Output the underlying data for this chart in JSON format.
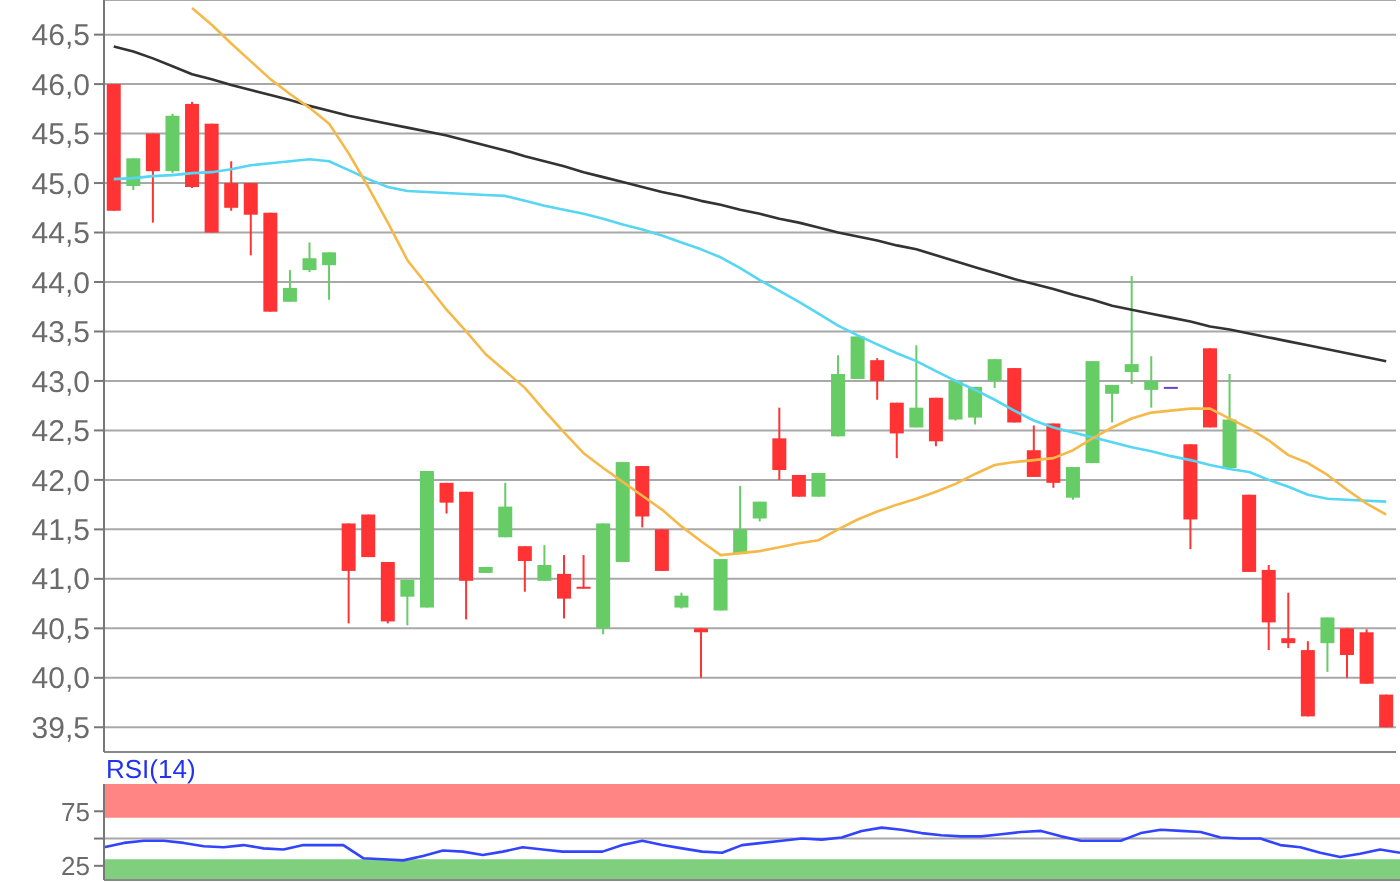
{
  "chart_data": [
    {
      "type": "candlestick",
      "categories": [
        null,
        null,
        null,
        null,
        null,
        null,
        null,
        null,
        null,
        null,
        null,
        null,
        null,
        null,
        null,
        null,
        null,
        null,
        null,
        null,
        null,
        null,
        null,
        null,
        null,
        null,
        null,
        null,
        null,
        null,
        null,
        null,
        null,
        null,
        null,
        null,
        null,
        null,
        null,
        null,
        null,
        null,
        null,
        null,
        null,
        null,
        null,
        null,
        null,
        null,
        null,
        null,
        null,
        null,
        null,
        null,
        null,
        null,
        null,
        null,
        null,
        null,
        null,
        null,
        null,
        null
      ],
      "ohlc": [
        [
          46.0,
          46.0,
          44.72,
          44.72
        ],
        [
          44.97,
          45.25,
          44.93,
          45.25
        ],
        [
          45.5,
          45.5,
          44.6,
          45.12
        ],
        [
          45.12,
          45.7,
          45.1,
          45.68
        ],
        [
          45.8,
          45.82,
          44.95,
          44.96
        ],
        [
          45.6,
          45.6,
          44.5,
          44.5
        ],
        [
          45.0,
          45.22,
          44.72,
          44.75
        ],
        [
          45.0,
          45.0,
          44.27,
          44.68
        ],
        [
          44.7,
          44.7,
          43.7,
          43.7
        ],
        [
          43.8,
          44.12,
          43.8,
          43.94
        ],
        [
          44.12,
          44.4,
          44.1,
          44.24
        ],
        [
          44.17,
          44.3,
          43.82,
          44.3
        ],
        [
          41.56,
          41.56,
          40.55,
          41.08
        ],
        [
          41.65,
          41.65,
          41.22,
          41.22
        ],
        [
          41.17,
          41.17,
          40.55,
          40.57
        ],
        [
          40.82,
          40.99,
          40.53,
          40.99
        ],
        [
          40.71,
          42.09,
          40.71,
          42.09
        ],
        [
          41.97,
          41.97,
          41.66,
          41.77
        ],
        [
          41.88,
          41.88,
          40.59,
          40.98
        ],
        [
          41.06,
          41.12,
          41.06,
          41.12
        ],
        [
          41.42,
          41.97,
          41.42,
          41.73
        ],
        [
          41.33,
          41.33,
          40.87,
          41.18
        ],
        [
          40.98,
          41.34,
          40.98,
          41.14
        ],
        [
          41.05,
          41.24,
          40.6,
          40.8
        ],
        [
          40.92,
          41.24,
          40.9,
          40.91
        ],
        [
          40.5,
          41.56,
          40.44,
          41.56
        ],
        [
          41.17,
          42.18,
          41.17,
          42.18
        ],
        [
          42.14,
          42.14,
          41.52,
          41.63
        ],
        [
          41.5,
          41.5,
          41.08,
          41.08
        ],
        [
          40.71,
          40.86,
          40.7,
          40.83
        ],
        [
          40.5,
          40.5,
          40.0,
          40.46
        ],
        [
          40.68,
          41.2,
          40.68,
          41.2
        ],
        [
          41.25,
          41.94,
          41.25,
          41.5
        ],
        [
          41.61,
          41.78,
          41.58,
          41.78
        ],
        [
          42.42,
          42.73,
          42.0,
          42.1
        ],
        [
          42.05,
          42.05,
          41.83,
          41.83
        ],
        [
          41.83,
          42.07,
          41.83,
          42.07
        ],
        [
          42.44,
          43.26,
          42.44,
          43.07
        ],
        [
          43.02,
          43.45,
          43.02,
          43.45
        ],
        [
          43.21,
          43.23,
          42.81,
          43.0
        ],
        [
          42.78,
          42.78,
          42.22,
          42.47
        ],
        [
          42.53,
          43.36,
          42.53,
          42.73
        ],
        [
          42.83,
          42.83,
          42.34,
          42.39
        ],
        [
          42.61,
          43.0,
          42.6,
          43.0
        ],
        [
          42.63,
          42.94,
          42.56,
          42.94
        ],
        [
          43.0,
          43.22,
          42.93,
          43.22
        ],
        [
          43.13,
          43.13,
          42.58,
          42.58
        ],
        [
          42.3,
          42.55,
          42.03,
          42.03
        ],
        [
          42.57,
          42.57,
          41.92,
          41.97
        ],
        [
          41.82,
          42.13,
          41.8,
          42.13
        ],
        [
          42.17,
          43.2,
          42.17,
          43.2
        ],
        [
          42.87,
          42.96,
          42.58,
          42.96
        ],
        [
          43.09,
          44.06,
          42.97,
          43.17
        ],
        [
          42.91,
          43.25,
          42.73,
          43.0
        ],
        [
          42.94,
          42.94,
          42.94,
          42.94
        ],
        [
          42.36,
          42.36,
          41.3,
          41.6
        ],
        [
          43.33,
          43.33,
          42.53,
          42.53
        ],
        [
          42.12,
          43.07,
          42.12,
          42.61
        ],
        [
          41.85,
          41.85,
          41.07,
          41.07
        ],
        [
          41.09,
          41.14,
          40.28,
          40.56
        ],
        [
          40.4,
          40.86,
          40.3,
          40.35
        ],
        [
          40.28,
          40.37,
          39.61,
          39.61
        ],
        [
          40.35,
          40.61,
          40.06,
          40.61
        ],
        [
          40.5,
          40.5,
          40.0,
          40.23
        ],
        [
          40.46,
          40.49,
          39.94,
          39.94
        ],
        [
          39.83,
          39.83,
          39.5,
          39.5
        ]
      ],
      "colors": [
        "#ff3333",
        "#66cc66",
        "#ff3333",
        "#66cc66",
        "#ff3333",
        "#ff3333",
        "#ff3333",
        "#ff3333",
        "#ff3333",
        "#66cc66",
        "#66cc66",
        "#66cc66",
        "#ff3333",
        "#ff3333",
        "#ff3333",
        "#66cc66",
        "#66cc66",
        "#ff3333",
        "#ff3333",
        "#66cc66",
        "#66cc66",
        "#ff3333",
        "#66cc66",
        "#ff3333",
        "#ff3333",
        "#66cc66",
        "#66cc66",
        "#ff3333",
        "#ff3333",
        "#66cc66",
        "#ff3333",
        "#66cc66",
        "#66cc66",
        "#66cc66",
        "#ff3333",
        "#ff3333",
        "#66cc66",
        "#66cc66",
        "#66cc66",
        "#ff3333",
        "#ff3333",
        "#66cc66",
        "#ff3333",
        "#66cc66",
        "#66cc66",
        "#66cc66",
        "#ff3333",
        "#ff3333",
        "#ff3333",
        "#66cc66",
        "#66cc66",
        "#66cc66",
        "#66cc66",
        "#66cc66",
        "#6644cc",
        "#ff3333",
        "#ff3333",
        "#66cc66",
        "#ff3333",
        "#ff3333",
        "#ff3333",
        "#ff3333",
        "#66cc66",
        "#ff3333",
        "#ff3333",
        "#ff3333"
      ],
      "series": [
        {
          "type": "line",
          "color": "#333333",
          "values": [
            46.38,
            46.33,
            46.26,
            46.18,
            46.1,
            46.05,
            45.99,
            45.94,
            45.89,
            45.84,
            45.78,
            45.73,
            45.68,
            45.64,
            45.6,
            45.56,
            45.52,
            45.48,
            45.43,
            45.38,
            45.33,
            45.27,
            45.22,
            45.17,
            45.11,
            45.06,
            45.01,
            44.96,
            44.91,
            44.87,
            44.82,
            44.78,
            44.73,
            44.69,
            44.64,
            44.6,
            44.55,
            44.5,
            44.46,
            44.42,
            44.37,
            44.33,
            44.27,
            44.21,
            44.15,
            44.09,
            44.03,
            43.98,
            43.93,
            43.87,
            43.82,
            43.76,
            43.72,
            43.68,
            43.64,
            43.6,
            43.55,
            43.52,
            43.48,
            43.44,
            43.4,
            43.36,
            43.32,
            43.28,
            43.24,
            43.2
          ]
        },
        {
          "type": "line",
          "color": "#55d6f2",
          "values": [
            45.04,
            45.05,
            45.07,
            45.08,
            45.1,
            45.11,
            45.14,
            45.18,
            45.2,
            45.22,
            45.24,
            45.22,
            45.13,
            45.04,
            44.96,
            44.92,
            44.91,
            44.9,
            44.89,
            44.88,
            44.87,
            44.82,
            44.77,
            44.73,
            44.69,
            44.64,
            44.58,
            44.53,
            44.47,
            44.4,
            44.33,
            44.25,
            44.14,
            44.02,
            43.91,
            43.8,
            43.68,
            43.56,
            43.46,
            43.37,
            43.28,
            43.2,
            43.1,
            43.0,
            42.91,
            42.81,
            42.7,
            42.6,
            42.53,
            42.48,
            42.43,
            42.38,
            42.33,
            42.29,
            42.24,
            42.2,
            42.15,
            42.11,
            42.08,
            42.0,
            41.93,
            41.85,
            41.81,
            41.8,
            41.79,
            41.78
          ]
        },
        {
          "type": "line",
          "color": "#f5b94a",
          "values": [
            null,
            null,
            null,
            null,
            46.77,
            46.6,
            46.41,
            46.23,
            46.05,
            45.9,
            45.76,
            45.6,
            45.3,
            44.96,
            44.6,
            44.22,
            43.97,
            43.72,
            43.5,
            43.27,
            43.1,
            42.93,
            42.7,
            42.48,
            42.27,
            42.12,
            41.98,
            41.84,
            41.7,
            41.53,
            41.38,
            41.24,
            41.26,
            41.28,
            41.32,
            41.36,
            41.39,
            41.5,
            41.6,
            41.68,
            41.75,
            41.81,
            41.88,
            41.96,
            42.06,
            42.15,
            42.18,
            42.2,
            42.22,
            42.3,
            42.42,
            42.53,
            42.62,
            42.68,
            42.7,
            42.72,
            42.72,
            42.62,
            42.52,
            42.4,
            42.25,
            42.17,
            42.05,
            41.9,
            41.76,
            41.65
          ]
        }
      ],
      "ylim": [
        39.25,
        46.85
      ],
      "yticks": [
        {
          "value": 39.5,
          "label": "39,5"
        },
        {
          "value": 40,
          "label": "40,0"
        },
        {
          "value": 40.5,
          "label": "40,5"
        },
        {
          "value": 41,
          "label": "41,0"
        },
        {
          "value": 41.5,
          "label": "41,5"
        },
        {
          "value": 42,
          "label": "42,0"
        },
        {
          "value": 42.5,
          "label": "42,5"
        },
        {
          "value": 43,
          "label": "43,0"
        },
        {
          "value": 43.5,
          "label": "43,5"
        },
        {
          "value": 44,
          "label": "44,0"
        },
        {
          "value": 44.5,
          "label": "44,5"
        },
        {
          "value": 45,
          "label": "45,0"
        },
        {
          "value": 45.5,
          "label": "45,5"
        },
        {
          "value": 46,
          "label": "46,0"
        },
        {
          "value": 46.5,
          "label": "46,5"
        }
      ],
      "grid": "y"
    },
    {
      "type": "line",
      "title": "RSI(14)",
      "categories": [
        null,
        null,
        null,
        null,
        null,
        null,
        null,
        null,
        null,
        null,
        null,
        null,
        null,
        null,
        null,
        null,
        null,
        null,
        null,
        null,
        null,
        null,
        null,
        null,
        null,
        null,
        null,
        null,
        null,
        null,
        null,
        null,
        null,
        null,
        null,
        null,
        null,
        null,
        null,
        null,
        null,
        null,
        null,
        null,
        null,
        null,
        null,
        null,
        null,
        null,
        null,
        null,
        null,
        null,
        null,
        null,
        null,
        null,
        null,
        null,
        null,
        null,
        null,
        null,
        null,
        null
      ],
      "series": [
        {
          "color": "#3344ff",
          "values": [
            42,
            46,
            48,
            48,
            46,
            43,
            42,
            44,
            41,
            40,
            44,
            44,
            44,
            32,
            31,
            30,
            34,
            39,
            38,
            35,
            38,
            42,
            40,
            38,
            38,
            38,
            44,
            48,
            44,
            41,
            38,
            37,
            44,
            46,
            48,
            50,
            49,
            51,
            57,
            60,
            58,
            55,
            53,
            52,
            52,
            54,
            56,
            57,
            52,
            48,
            48,
            48,
            55,
            58,
            57,
            56,
            51,
            50,
            50,
            44,
            42,
            37,
            33,
            36,
            40,
            37
          ]
        }
      ],
      "ylim": [
        12,
        100
      ],
      "yticks": [
        25,
        {
          "value": 50,
          "label": null
        },
        75
      ],
      "bands": [
        {
          "axis": "y",
          "from": 70,
          "to": 100,
          "color": "#ff8585"
        },
        {
          "axis": "y",
          "from": 12,
          "to": 30,
          "color": "#7fcf7f"
        }
      ],
      "grid": "y"
    }
  ]
}
